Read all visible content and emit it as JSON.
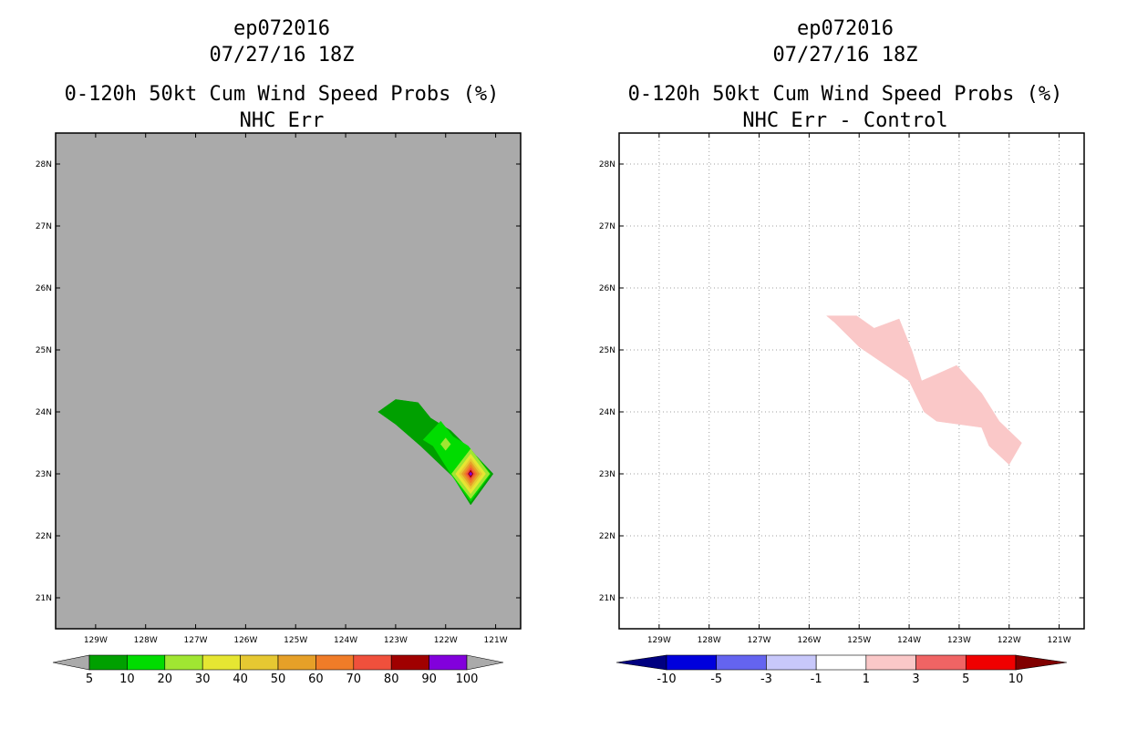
{
  "panels": [
    {
      "storm_id": "ep072016",
      "datetime": "07/27/16 18Z",
      "product": "0-120h 50kt Cum Wind Speed Probs (%)",
      "subtitle": "NHC Err",
      "background": "#aaaaaa",
      "grid": false
    },
    {
      "storm_id": "ep072016",
      "datetime": "07/27/16 18Z",
      "product": "0-120h 50kt Cum Wind Speed Probs (%)",
      "subtitle": "NHC Err - Control",
      "background": "#ffffff",
      "grid": true
    }
  ],
  "chart_data": [
    {
      "type": "contour-map",
      "title": "0-120h 50kt Cum Wind Speed Probs (%)",
      "subtitle": "NHC Err",
      "xlim": [
        -129.8,
        -120.5
      ],
      "ylim": [
        20.5,
        28.5
      ],
      "x_ticks": [
        -129,
        -128,
        -127,
        -126,
        -125,
        -124,
        -123,
        -122,
        -121
      ],
      "x_tick_labels": [
        "129W",
        "128W",
        "127W",
        "126W",
        "125W",
        "124W",
        "123W",
        "122W",
        "121W"
      ],
      "y_ticks": [
        21,
        22,
        23,
        24,
        25,
        26,
        27,
        28
      ],
      "y_tick_labels": [
        "21N",
        "22N",
        "23N",
        "24N",
        "25N",
        "26N",
        "27N",
        "28N"
      ],
      "colorbar": {
        "levels": [
          "5",
          "10",
          "20",
          "30",
          "40",
          "50",
          "60",
          "70",
          "80",
          "90",
          "100"
        ],
        "colors": [
          "#00a000",
          "#00dc00",
          "#a0e632",
          "#e6e632",
          "#e6c832",
          "#e6a028",
          "#f07c28",
          "#f0503c",
          "#a00000",
          "#8200dc"
        ],
        "under_color": "#aaaaaa",
        "over_color": "#aaaaaa"
      },
      "contours": [
        {
          "level": 5,
          "color": "#00a000",
          "points": [
            [
              -123.35,
              24.0
            ],
            [
              -123.0,
              24.2
            ],
            [
              -122.55,
              24.15
            ],
            [
              -122.3,
              23.9
            ],
            [
              -121.9,
              23.7
            ],
            [
              -121.4,
              23.3
            ],
            [
              -121.05,
              23.0
            ],
            [
              -121.5,
              22.5
            ],
            [
              -121.85,
              22.95
            ],
            [
              -122.5,
              23.45
            ],
            [
              -123.0,
              23.8
            ]
          ]
        },
        {
          "level": 10,
          "color": "#00dc00",
          "points": [
            [
              -122.1,
              23.85
            ],
            [
              -121.85,
              23.6
            ],
            [
              -121.55,
              23.45
            ],
            [
              -121.1,
              23.0
            ],
            [
              -121.5,
              22.55
            ],
            [
              -121.9,
              23.0
            ],
            [
              -122.25,
              23.45
            ],
            [
              -122.45,
              23.55
            ]
          ]
        },
        {
          "level": 20,
          "color": "#a0e632",
          "points": [
            [
              -122.0,
              23.58
            ],
            [
              -121.9,
              23.48
            ],
            [
              -122.0,
              23.38
            ],
            [
              -122.1,
              23.48
            ]
          ]
        },
        {
          "level": 20,
          "color": "#a0e632",
          "points": [
            [
              -121.5,
              23.4
            ],
            [
              -121.12,
              23.0
            ],
            [
              -121.5,
              22.6
            ],
            [
              -121.88,
              23.0
            ]
          ]
        },
        {
          "level": 30,
          "color": "#e6e632",
          "points": [
            [
              -121.5,
              23.32
            ],
            [
              -121.2,
              23.0
            ],
            [
              -121.5,
              22.68
            ],
            [
              -121.8,
              23.0
            ]
          ]
        },
        {
          "level": 40,
          "color": "#e6c832",
          "points": [
            [
              -121.5,
              23.25
            ],
            [
              -121.27,
              23.0
            ],
            [
              -121.5,
              22.75
            ],
            [
              -121.73,
              23.0
            ]
          ]
        },
        {
          "level": 50,
          "color": "#e6a028",
          "points": [
            [
              -121.5,
              23.2
            ],
            [
              -121.32,
              23.0
            ],
            [
              -121.5,
              22.8
            ],
            [
              -121.68,
              23.0
            ]
          ]
        },
        {
          "level": 60,
          "color": "#f07c28",
          "points": [
            [
              -121.5,
              23.15
            ],
            [
              -121.37,
              23.0
            ],
            [
              -121.5,
              22.85
            ],
            [
              -121.63,
              23.0
            ]
          ]
        },
        {
          "level": 70,
          "color": "#f0503c",
          "points": [
            [
              -121.5,
              23.1
            ],
            [
              -121.41,
              23.0
            ],
            [
              -121.5,
              22.9
            ],
            [
              -121.59,
              23.0
            ]
          ]
        },
        {
          "level": 80,
          "color": "#a00000",
          "points": [
            [
              -121.5,
              23.06
            ],
            [
              -121.45,
              23.0
            ],
            [
              -121.5,
              22.94
            ],
            [
              -121.55,
              23.0
            ]
          ]
        },
        {
          "level": 90,
          "color": "#8200dc",
          "points": [
            [
              -121.5,
              23.03
            ],
            [
              -121.47,
              23.0
            ],
            [
              -121.5,
              22.97
            ],
            [
              -121.53,
              23.0
            ]
          ]
        }
      ]
    },
    {
      "type": "contour-map",
      "title": "0-120h 50kt Cum Wind Speed Probs (%)",
      "subtitle": "NHC Err - Control",
      "xlim": [
        -129.8,
        -120.5
      ],
      "ylim": [
        20.5,
        28.5
      ],
      "x_ticks": [
        -129,
        -128,
        -127,
        -126,
        -125,
        -124,
        -123,
        -122,
        -121
      ],
      "x_tick_labels": [
        "129W",
        "128W",
        "127W",
        "126W",
        "125W",
        "124W",
        "123W",
        "122W",
        "121W"
      ],
      "y_ticks": [
        21,
        22,
        23,
        24,
        25,
        26,
        27,
        28
      ],
      "y_tick_labels": [
        "21N",
        "22N",
        "23N",
        "24N",
        "25N",
        "26N",
        "27N",
        "28N"
      ],
      "colorbar": {
        "levels": [
          "-10",
          "-5",
          "-3",
          "-1",
          "1",
          "3",
          "5",
          "10"
        ],
        "colors": [
          "#0000dc",
          "#6464f0",
          "#c8c8fa",
          "#ffffff",
          "#fac8c8",
          "#f06464",
          "#f00000"
        ],
        "under_color": "#000080",
        "over_color": "#800000"
      },
      "contours": [
        {
          "level": 1,
          "color": "#fac8c8",
          "points": [
            [
              -125.65,
              25.55
            ],
            [
              -125.05,
              25.55
            ],
            [
              -124.7,
              25.35
            ],
            [
              -124.2,
              25.5
            ],
            [
              -123.95,
              25.0
            ],
            [
              -123.75,
              24.5
            ],
            [
              -123.05,
              24.75
            ],
            [
              -122.55,
              24.3
            ],
            [
              -122.2,
              23.85
            ],
            [
              -121.75,
              23.5
            ],
            [
              -122.0,
              23.15
            ],
            [
              -122.4,
              23.45
            ],
            [
              -122.55,
              23.75
            ],
            [
              -123.45,
              23.85
            ],
            [
              -123.7,
              24.0
            ],
            [
              -124.0,
              24.5
            ],
            [
              -125.0,
              25.05
            ],
            [
              -125.5,
              25.45
            ]
          ]
        }
      ]
    }
  ]
}
